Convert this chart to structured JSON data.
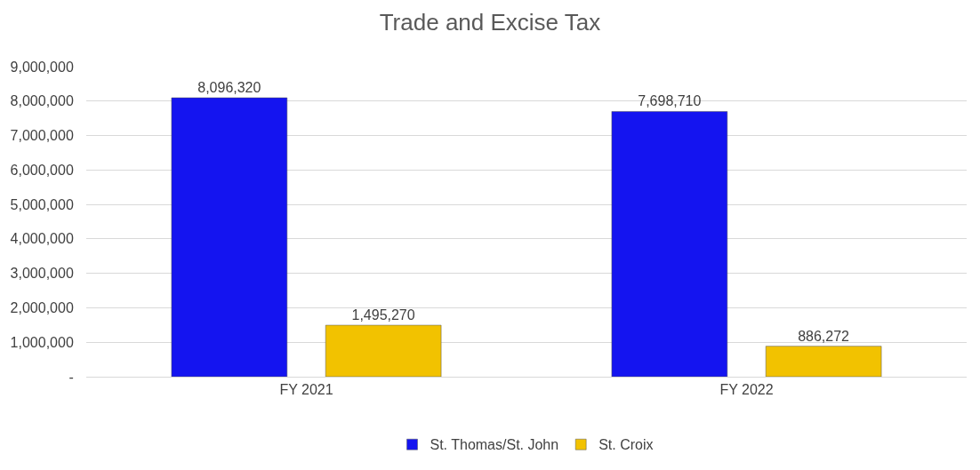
{
  "chart_data": {
    "type": "bar",
    "title": "Trade and Excise Tax",
    "categories": [
      "FY 2021",
      "FY 2022"
    ],
    "series": [
      {
        "name": "St. Thomas/St. John",
        "color": "#1414f0",
        "values": [
          8096320,
          7698710
        ],
        "value_labels": [
          "8,096,320",
          "7,698,710"
        ]
      },
      {
        "name": "St. Croix",
        "color": "#f2c200",
        "values": [
          1495270,
          886272
        ],
        "value_labels": [
          "1,495,270",
          "886,272"
        ]
      }
    ],
    "ylim": [
      0,
      9000000
    ],
    "yticks": [
      {
        "value": 0,
        "label": "-"
      },
      {
        "value": 1000000,
        "label": "1,000,000"
      },
      {
        "value": 2000000,
        "label": "2,000,000"
      },
      {
        "value": 3000000,
        "label": "3,000,000"
      },
      {
        "value": 4000000,
        "label": "4,000,000"
      },
      {
        "value": 5000000,
        "label": "5,000,000"
      },
      {
        "value": 6000000,
        "label": "6,000,000"
      },
      {
        "value": 7000000,
        "label": "7,000,000"
      },
      {
        "value": 8000000,
        "label": "8,000,000"
      },
      {
        "value": 9000000,
        "label": "9,000,000"
      }
    ],
    "grid": "y",
    "legend": "bottom"
  }
}
